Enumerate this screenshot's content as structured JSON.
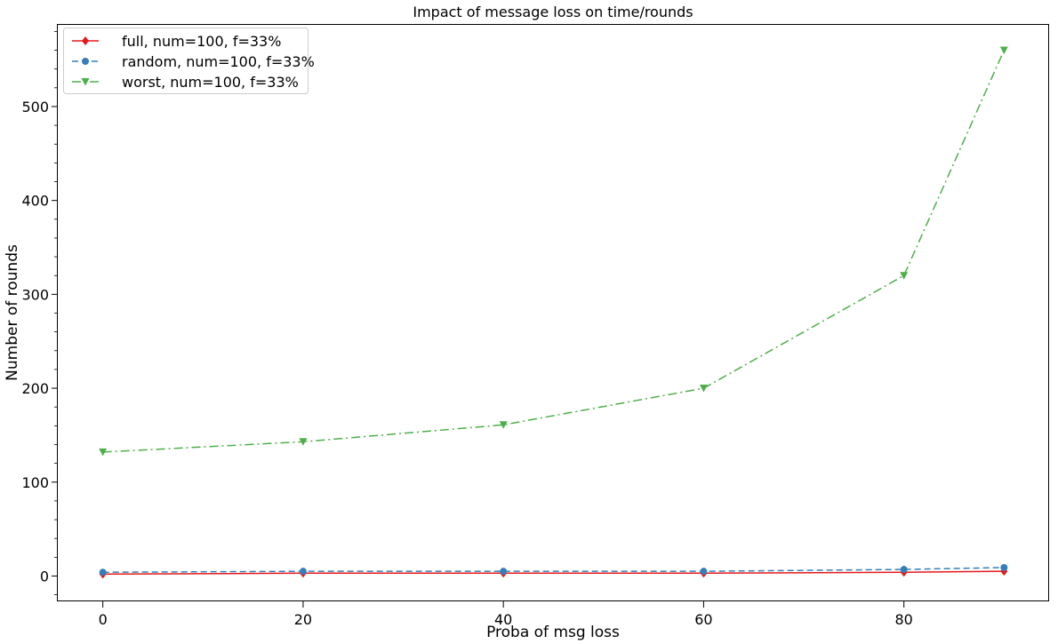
{
  "chart_data": {
    "type": "line",
    "title": "Impact of message loss on time/rounds",
    "xlabel": "Proba of msg loss",
    "ylabel": "Number of rounds",
    "x": [
      0,
      20,
      40,
      60,
      80,
      90
    ],
    "xlim": [
      -4.5,
      94.5
    ],
    "ylim": [
      -27,
      587
    ],
    "xticks": [
      "0",
      "20",
      "40",
      "60",
      "80"
    ],
    "yticks": [
      "0",
      "100",
      "200",
      "300",
      "400",
      "500"
    ],
    "grid": false,
    "legend_position": "top-left",
    "series": [
      {
        "name": "full, num=100, f=33%",
        "values": [
          2,
          3,
          3,
          3,
          4,
          5
        ],
        "color": "#e41a1c",
        "line_style": "solid",
        "marker": "diamond"
      },
      {
        "name": "random, num=100, f=33%",
        "values": [
          4,
          5,
          5,
          5,
          7,
          9
        ],
        "color": "#377eb8",
        "line_style": "dashed",
        "marker": "circle"
      },
      {
        "name": "worst, num=100, f=33%",
        "values": [
          132,
          143,
          161,
          200,
          320,
          560
        ],
        "color": "#4daf4a",
        "line_style": "dashdot",
        "marker": "triangle-down"
      }
    ]
  }
}
